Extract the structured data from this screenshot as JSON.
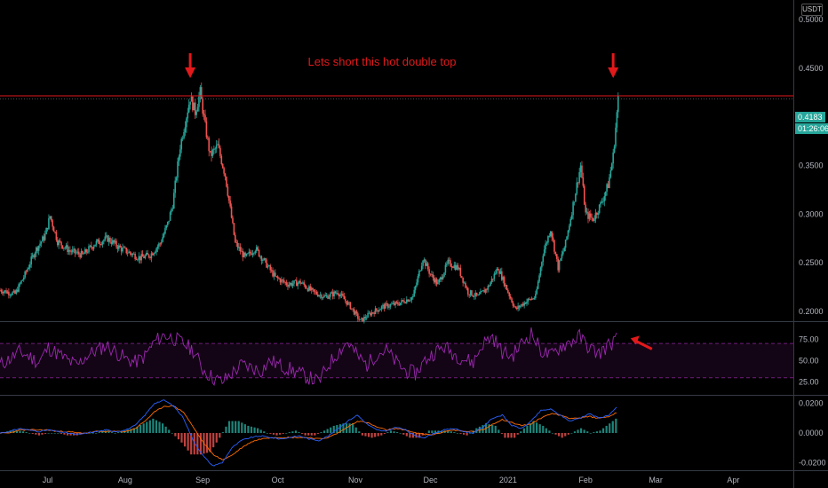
{
  "currency": "USDT",
  "annotation": "Lets short this hot double top",
  "last_price": "0.4183",
  "countdown": "01:26:06",
  "colors": {
    "up": "#26a69a",
    "down": "#ef5350",
    "rsi": "#9c27b0",
    "macd": "#2962ff",
    "signal": "#ff6d00",
    "resistance": "#e2191b",
    "arrow": "#e2191b"
  },
  "chart_data": [
    {
      "type": "candlestick",
      "pane": "price",
      "ylim": [
        0.19,
        0.52
      ],
      "y_ticks": [
        "0.5000",
        "0.4500",
        "0.4000",
        "0.3500",
        "0.3000",
        "0.2500",
        "0.2000"
      ],
      "y_tick_values": [
        0.5,
        0.45,
        0.4,
        0.35,
        0.3,
        0.25,
        0.2
      ],
      "x_ticks": [
        "Jul",
        "Aug",
        "Sep",
        "Oct",
        "Nov",
        "Dec",
        "2021",
        "Feb",
        "Mar",
        "Apr"
      ],
      "x_tick_dates": [
        "2020-07-01",
        "2020-08-01",
        "2020-09-01",
        "2020-10-01",
        "2020-11-01",
        "2020-12-01",
        "2021-01-01",
        "2021-02-01",
        "2021-03-01",
        "2021-04-01"
      ],
      "x_range": [
        "2020-06-12",
        "2021-04-25"
      ],
      "resistance": 0.4215,
      "last": 0.4183,
      "close_path": [
        [
          "2020-06-12",
          0.222
        ],
        [
          "2020-06-18",
          0.218
        ],
        [
          "2020-06-22",
          0.238
        ],
        [
          "2020-06-26",
          0.262
        ],
        [
          "2020-06-30",
          0.278
        ],
        [
          "2020-07-02",
          0.298
        ],
        [
          "2020-07-05",
          0.272
        ],
        [
          "2020-07-10",
          0.262
        ],
        [
          "2020-07-15",
          0.258
        ],
        [
          "2020-07-20",
          0.27
        ],
        [
          "2020-07-25",
          0.275
        ],
        [
          "2020-07-30",
          0.265
        ],
        [
          "2020-08-03",
          0.26
        ],
        [
          "2020-08-07",
          0.255
        ],
        [
          "2020-08-11",
          0.258
        ],
        [
          "2020-08-15",
          0.27
        ],
        [
          "2020-08-18",
          0.29
        ],
        [
          "2020-08-20",
          0.31
        ],
        [
          "2020-08-23",
          0.37
        ],
        [
          "2020-08-25",
          0.395
        ],
        [
          "2020-08-27",
          0.42
        ],
        [
          "2020-08-29",
          0.405
        ],
        [
          "2020-08-31",
          0.425
        ],
        [
          "2020-09-02",
          0.39
        ],
        [
          "2020-09-04",
          0.36
        ],
        [
          "2020-09-07",
          0.37
        ],
        [
          "2020-09-10",
          0.34
        ],
        [
          "2020-09-14",
          0.27
        ],
        [
          "2020-09-18",
          0.255
        ],
        [
          "2020-09-22",
          0.265
        ],
        [
          "2020-09-26",
          0.25
        ],
        [
          "2020-09-30",
          0.235
        ],
        [
          "2020-10-05",
          0.228
        ],
        [
          "2020-10-10",
          0.23
        ],
        [
          "2020-10-15",
          0.22
        ],
        [
          "2020-10-20",
          0.215
        ],
        [
          "2020-10-25",
          0.22
        ],
        [
          "2020-10-30",
          0.205
        ],
        [
          "2020-11-03",
          0.19
        ],
        [
          "2020-11-07",
          0.198
        ],
        [
          "2020-11-12",
          0.205
        ],
        [
          "2020-11-18",
          0.208
        ],
        [
          "2020-11-24",
          0.215
        ],
        [
          "2020-11-28",
          0.255
        ],
        [
          "2020-12-01",
          0.238
        ],
        [
          "2020-12-04",
          0.228
        ],
        [
          "2020-12-08",
          0.25
        ],
        [
          "2020-12-12",
          0.245
        ],
        [
          "2020-12-16",
          0.22
        ],
        [
          "2020-12-20",
          0.215
        ],
        [
          "2020-12-24",
          0.225
        ],
        [
          "2020-12-28",
          0.245
        ],
        [
          "2021-01-01",
          0.22
        ],
        [
          "2021-01-04",
          0.202
        ],
        [
          "2021-01-08",
          0.21
        ],
        [
          "2021-01-12",
          0.215
        ],
        [
          "2021-01-15",
          0.26
        ],
        [
          "2021-01-18",
          0.285
        ],
        [
          "2021-01-21",
          0.245
        ],
        [
          "2021-01-24",
          0.27
        ],
        [
          "2021-01-27",
          0.31
        ],
        [
          "2021-01-30",
          0.35
        ],
        [
          "2021-02-01",
          0.3
        ],
        [
          "2021-02-04",
          0.295
        ],
        [
          "2021-02-07",
          0.31
        ],
        [
          "2021-02-10",
          0.33
        ],
        [
          "2021-02-12",
          0.36
        ],
        [
          "2021-02-14",
          0.4183
        ]
      ]
    },
    {
      "type": "line",
      "pane": "rsi",
      "ylim": [
        10,
        95
      ],
      "y_ticks": [
        "75.00",
        "50.00",
        "25.00"
      ],
      "y_tick_values": [
        75,
        50,
        25
      ],
      "bands": [
        70,
        30
      ],
      "series": [
        {
          "values_note_ref": "oscillates with price momentum",
          "values": [
            45,
            52,
            60,
            55,
            48,
            65,
            58,
            50,
            44,
            56,
            62,
            68,
            60,
            52,
            48,
            55,
            72,
            80,
            76,
            70,
            62,
            40,
            30,
            25,
            35,
            45,
            42,
            38,
            50,
            44,
            40,
            35,
            30,
            25,
            45,
            60,
            72,
            55,
            45,
            58,
            62,
            48,
            38,
            35,
            50,
            60,
            66,
            58,
            52,
            48,
            70,
            78,
            60,
            55,
            70,
            82,
            62,
            55,
            66,
            72,
            78,
            65,
            58,
            68,
            76
          ]
        }
      ]
    },
    {
      "type": "line",
      "pane": "macd",
      "ylim": [
        -0.025,
        0.025
      ],
      "y_ticks": [
        "0.0200",
        "0.0000",
        "-0.0200"
      ],
      "y_tick_values": [
        0.02,
        0,
        -0.02
      ],
      "series": [
        {
          "values": [
            0,
            0.001,
            0.003,
            0.002,
            0.001,
            0.002,
            0.001,
            0,
            -0.001,
            0,
            0.001,
            0.002,
            0.001,
            0.002,
            0.005,
            0.012,
            0.02,
            0.022,
            0.018,
            0.01,
            -0.005,
            -0.015,
            -0.022,
            -0.02,
            -0.01,
            -0.005,
            -0.003,
            -0.002,
            -0.003,
            -0.004,
            -0.003,
            -0.002,
            -0.004,
            -0.005,
            -0.002,
            0.003,
            0.008,
            0.012,
            0.006,
            0.002,
            0.001,
            0.004,
            0.002,
            -0.002,
            -0.003,
            0,
            0.002,
            0.003,
            0.001,
            0,
            0.004,
            0.01,
            0.012,
            0.005,
            0.003,
            0.008,
            0.015,
            0.016,
            0.012,
            0.008,
            0.01,
            0.013,
            0.01,
            0.012,
            0.018
          ]
        },
        {
          "values": [
            0,
            0,
            0.002,
            0.002,
            0.002,
            0.002,
            0.001,
            0.001,
            0,
            0,
            0.001,
            0.001,
            0.001,
            0.001,
            0.003,
            0.008,
            0.014,
            0.018,
            0.018,
            0.014,
            0.004,
            -0.006,
            -0.014,
            -0.018,
            -0.015,
            -0.01,
            -0.006,
            -0.004,
            -0.003,
            -0.003,
            -0.003,
            -0.003,
            -0.003,
            -0.004,
            -0.003,
            0,
            0.004,
            0.008,
            0.007,
            0.004,
            0.002,
            0.003,
            0.002,
            0,
            -0.001,
            -0.001,
            0.001,
            0.002,
            0.001,
            0.001,
            0.002,
            0.006,
            0.009,
            0.007,
            0.005,
            0.006,
            0.01,
            0.013,
            0.012,
            0.01,
            0.01,
            0.011,
            0.01,
            0.011,
            0.014
          ]
        }
      ]
    }
  ]
}
